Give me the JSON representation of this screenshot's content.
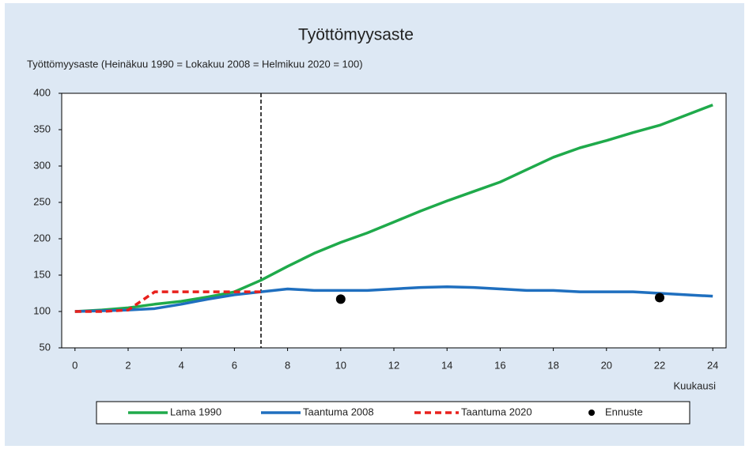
{
  "chart_data": {
    "type": "line",
    "title": "Työttömyysaste",
    "y_label": "Työttömyysaste (Heinäkuu 1990 = Lokakuu 2008 = Helmikuu 2020 = 100)",
    "x_label": "Kuukausi",
    "xlim": [
      -0.5,
      24.5
    ],
    "xticks": [
      0,
      2,
      4,
      6,
      8,
      10,
      12,
      14,
      16,
      18,
      20,
      22,
      24
    ],
    "ylim": [
      50,
      400
    ],
    "yticks": [
      50,
      100,
      150,
      200,
      250,
      300,
      350,
      400
    ],
    "vertical_line": 7,
    "series": [
      {
        "name": "Lama 1990",
        "color": "#1faa4b",
        "style": "solid",
        "x": [
          0,
          1,
          2,
          3,
          4,
          5,
          6,
          7,
          8,
          9,
          10,
          11,
          12,
          13,
          14,
          15,
          16,
          17,
          18,
          19,
          20,
          21,
          22,
          23,
          24
        ],
        "values": [
          100,
          102,
          105,
          110,
          114,
          120,
          127,
          143,
          162,
          180,
          195,
          208,
          223,
          238,
          252,
          265,
          278,
          295,
          312,
          325,
          335,
          346,
          356,
          370,
          384
        ]
      },
      {
        "name": "Taantuma 2008",
        "color": "#1f6fbf",
        "style": "solid",
        "x": [
          0,
          1,
          2,
          3,
          4,
          5,
          6,
          7,
          8,
          9,
          10,
          11,
          12,
          13,
          14,
          15,
          16,
          17,
          18,
          19,
          20,
          21,
          22,
          23,
          24
        ],
        "values": [
          100,
          101,
          102,
          104,
          110,
          117,
          123,
          127,
          131,
          129,
          129,
          129,
          131,
          133,
          134,
          133,
          131,
          129,
          129,
          127,
          127,
          127,
          125,
          123,
          121
        ]
      },
      {
        "name": "Taantuma 2020",
        "color": "#e8201c",
        "style": "dashed",
        "x": [
          0,
          1,
          2,
          3,
          4,
          5,
          6,
          7
        ],
        "values": [
          100,
          100,
          102,
          127,
          127,
          127,
          127,
          127
        ]
      },
      {
        "name": "Ennuste",
        "color": "#000000",
        "style": "markers",
        "x": [
          10,
          22
        ],
        "values": [
          117,
          119
        ]
      }
    ]
  }
}
